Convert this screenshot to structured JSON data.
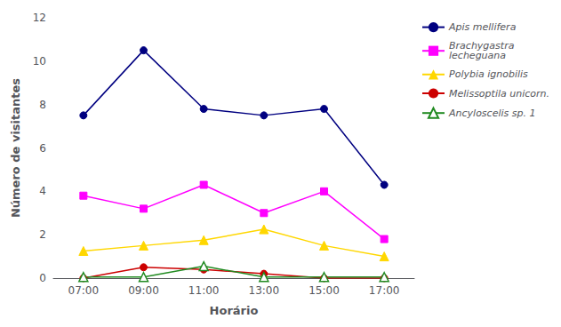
{
  "chart_data": {
    "type": "line",
    "xlabel": "Horário",
    "ylabel": "Número de visitantes",
    "categories": [
      "07:00",
      "09:00",
      "11:00",
      "13:00",
      "15:00",
      "17:00"
    ],
    "series": [
      {
        "name": "Apis mellifera",
        "color": "#000080",
        "marker": "circle",
        "values": [
          7.5,
          10.5,
          7.8,
          7.5,
          7.8,
          4.3
        ]
      },
      {
        "name": "Brachygastra\nlecheguana",
        "color": "#FF00FF",
        "marker": "square",
        "values": [
          3.8,
          3.2,
          4.3,
          3.0,
          4.0,
          1.8
        ]
      },
      {
        "name": "Polybia ignobilis",
        "color": "#FFD700",
        "marker": "triangle",
        "values": [
          1.25,
          1.5,
          1.75,
          2.25,
          1.5,
          1.0
        ]
      },
      {
        "name": "Melissoptila unicorn.",
        "color": "#CC0000",
        "marker": "circle",
        "values": [
          0.0,
          0.5,
          0.4,
          0.2,
          0.0,
          0.0
        ]
      },
      {
        "name": "Ancyloscelis sp. 1",
        "color": "#228B22",
        "marker": "open-triangle",
        "values": [
          0.05,
          0.05,
          0.55,
          0.05,
          0.05,
          0.05
        ]
      }
    ],
    "ylim": [
      0,
      12
    ],
    "yticks": [
      0,
      2,
      4,
      6,
      8,
      10,
      12
    ],
    "grid": false,
    "legend": "upper right"
  }
}
